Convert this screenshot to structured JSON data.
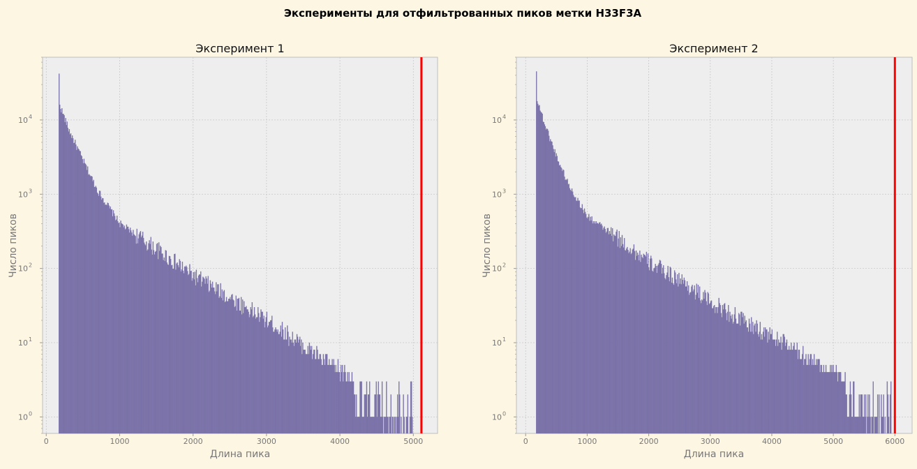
{
  "figure": {
    "title": "Эксперименты для отфильтрованных пиков метки H33F3A",
    "background": "#fdf6e3",
    "axes_background": "#eeeeee",
    "bar_color": "#7a72a8",
    "threshold_color": "#ff0000"
  },
  "chart_data": [
    {
      "type": "bar",
      "title": "Эксперимент 1",
      "xlabel": "Длина пика",
      "ylabel": "Число пиков",
      "yscale": "log",
      "xlim": [
        -50,
        5330
      ],
      "ylim": [
        0.6,
        70000
      ],
      "xticks": [
        0,
        1000,
        2000,
        3000,
        4000,
        5000
      ],
      "yticks": [
        {
          "value": 1,
          "base": "10",
          "exp": "0"
        },
        {
          "value": 10,
          "base": "10",
          "exp": "1"
        },
        {
          "value": 100,
          "base": "10",
          "exp": "2"
        },
        {
          "value": 1000,
          "base": "10",
          "exp": "3"
        },
        {
          "value": 10000,
          "base": "10",
          "exp": "4"
        }
      ],
      "grid": true,
      "bin_width": 10,
      "bins_start": 170,
      "data_max_x": 5000,
      "threshold_x": 5110,
      "histogram_profile_x": [
        170,
        180,
        200,
        300,
        500,
        700,
        1000,
        1500,
        2000,
        2500,
        3000,
        3500,
        4000,
        4500,
        5000
      ],
      "histogram_profile_counts": [
        42000,
        16000,
        14000,
        7500,
        2800,
        1100,
        400,
        180,
        80,
        40,
        20,
        9,
        4,
        2,
        1
      ]
    },
    {
      "type": "bar",
      "title": "Эксперимент 2",
      "xlabel": "Длина пика",
      "ylabel": "Число пиков",
      "yscale": "log",
      "xlim": [
        -150,
        6280
      ],
      "ylim": [
        0.6,
        70000
      ],
      "xticks": [
        0,
        1000,
        2000,
        3000,
        4000,
        5000,
        6000
      ],
      "yticks": [
        {
          "value": 1,
          "base": "10",
          "exp": "0"
        },
        {
          "value": 10,
          "base": "10",
          "exp": "1"
        },
        {
          "value": 100,
          "base": "10",
          "exp": "2"
        },
        {
          "value": 1000,
          "base": "10",
          "exp": "3"
        },
        {
          "value": 10000,
          "base": "10",
          "exp": "4"
        }
      ],
      "grid": true,
      "bin_width": 12,
      "bins_start": 170,
      "data_max_x": 5960,
      "threshold_x": 6000,
      "histogram_profile_x": [
        170,
        180,
        200,
        300,
        500,
        700,
        1000,
        1500,
        2000,
        2500,
        3000,
        3500,
        4000,
        4500,
        5000,
        5500,
        5960
      ],
      "histogram_profile_counts": [
        45000,
        20000,
        17000,
        9000,
        3200,
        1300,
        500,
        250,
        120,
        70,
        35,
        20,
        12,
        7,
        4,
        2,
        1
      ]
    }
  ]
}
